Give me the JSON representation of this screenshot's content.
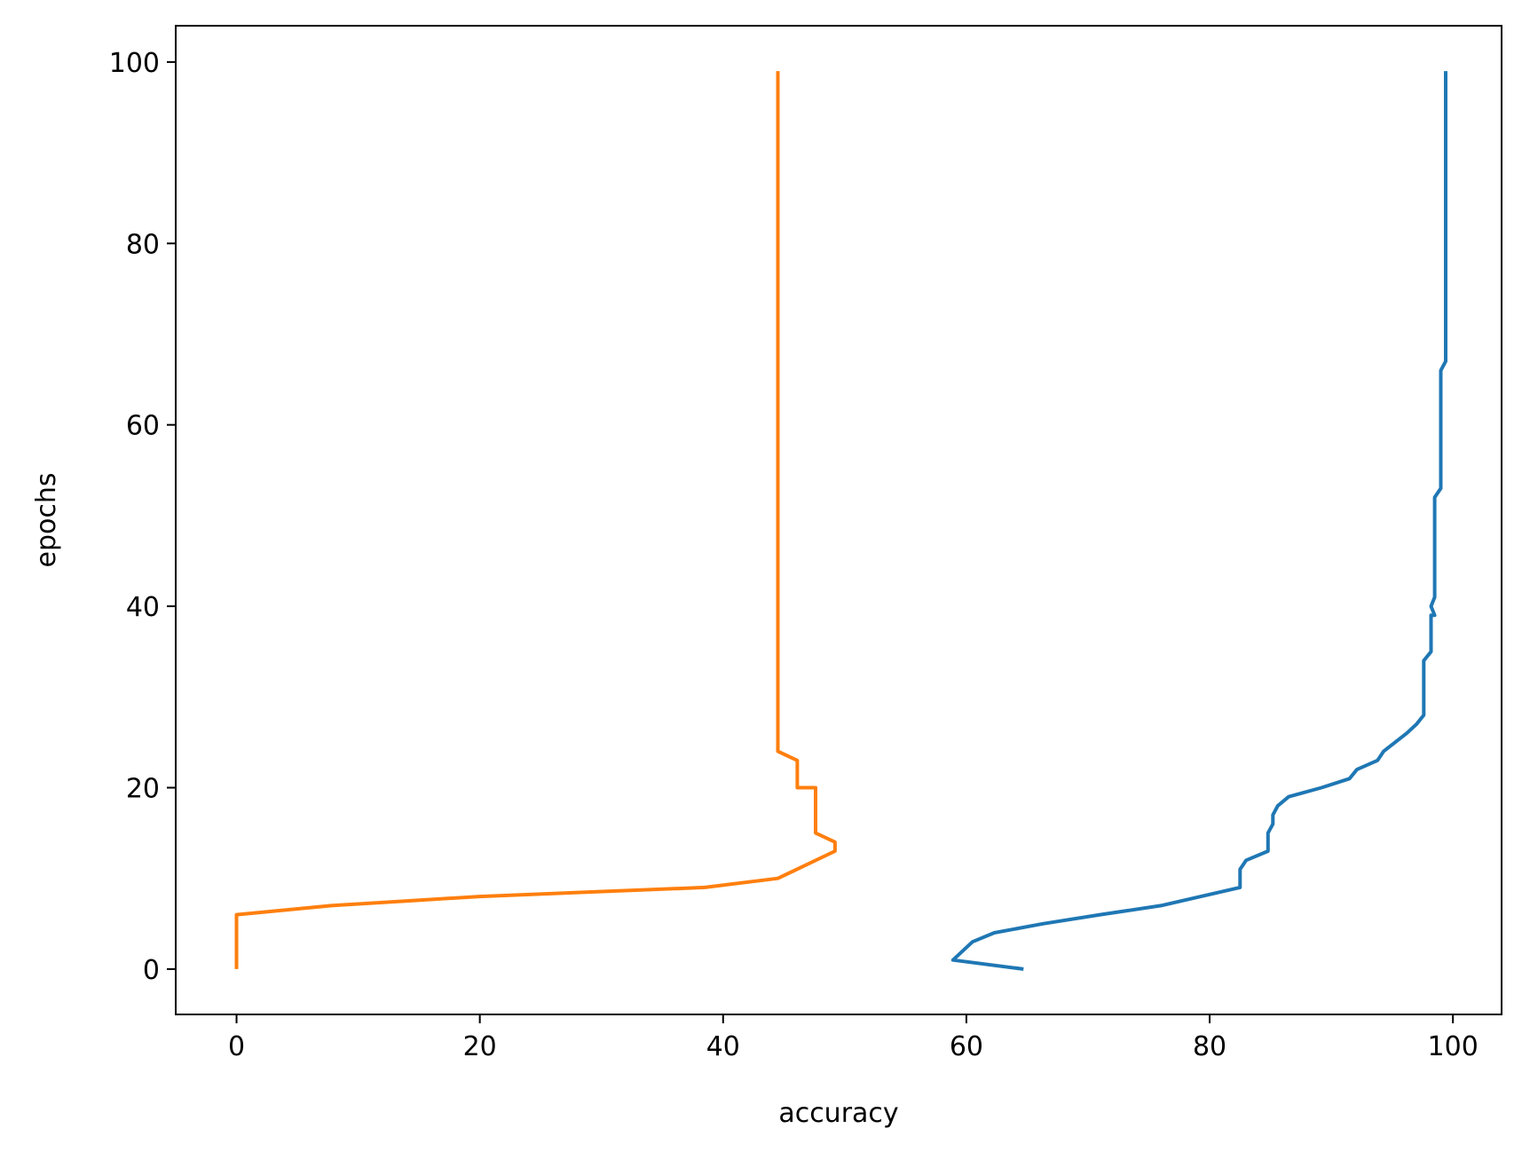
{
  "chart_data": {
    "type": "line",
    "xlabel": "accuracy",
    "ylabel": "epochs",
    "xlim": [
      -5,
      104
    ],
    "ylim": [
      -5,
      104
    ],
    "x_ticks": [
      0,
      20,
      40,
      60,
      80,
      100
    ],
    "y_ticks": [
      0,
      20,
      40,
      60,
      80,
      100
    ],
    "x_tick_labels": [
      "0",
      "20",
      "40",
      "60",
      "80",
      "100"
    ],
    "y_tick_labels": [
      "0",
      "20",
      "40",
      "60",
      "80",
      "100"
    ],
    "grid": false,
    "series": [
      {
        "color": "#1f77b4",
        "x": [
          64.7,
          58.9,
          60.5,
          62.3,
          66.3,
          71.0,
          76.0,
          82.5,
          82.5,
          82.5,
          83.0,
          84.8,
          84.8,
          84.8,
          85.2,
          85.2,
          85.6,
          86.5,
          89.2,
          91.5,
          92.1,
          93.8,
          94.3,
          96.2,
          97.0,
          97.6,
          97.6,
          97.6,
          97.6,
          97.6,
          97.6,
          97.6,
          97.6,
          97.6,
          98.2,
          98.2,
          98.2,
          98.2,
          98.2,
          98.5,
          98.2,
          98.5,
          98.5,
          98.5,
          98.5,
          98.5,
          98.5,
          98.5,
          98.5,
          98.5,
          98.5,
          98.5,
          98.5,
          99.0,
          99.0,
          99.0,
          99.0,
          99.0,
          99.0,
          99.0,
          99.0,
          99.0,
          99.0,
          99.0,
          99.0,
          99.0,
          99.0,
          99.4,
          99.4,
          99.4,
          99.4,
          99.4,
          99.4,
          99.4,
          99.4,
          99.4,
          99.4,
          99.4,
          99.4,
          99.4,
          99.4,
          99.4,
          99.4,
          99.4,
          99.4,
          99.4,
          99.4,
          99.4,
          99.4,
          99.4,
          99.4,
          99.4,
          99.4,
          99.4,
          99.4,
          99.4,
          99.4,
          99.4,
          99.4,
          99.4
        ],
        "y": [
          0,
          1,
          3,
          4,
          5,
          6,
          7,
          9,
          10,
          11,
          12,
          13,
          14,
          15,
          16,
          17,
          18,
          19,
          20,
          21,
          22,
          23,
          24,
          26,
          27,
          28,
          29,
          30,
          31,
          32,
          33,
          34,
          34,
          34,
          35,
          36,
          37,
          38,
          39,
          39,
          40,
          41,
          42,
          43,
          44,
          45,
          46,
          47,
          48,
          49,
          50,
          51,
          52,
          53,
          54,
          55,
          56,
          57,
          58,
          59,
          60,
          61,
          62,
          63,
          64,
          65,
          66,
          67,
          68,
          69,
          70,
          71,
          72,
          73,
          74,
          75,
          76,
          77,
          78,
          79,
          80,
          81,
          82,
          83,
          84,
          85,
          86,
          87,
          88,
          89,
          90,
          91,
          92,
          93,
          94,
          95,
          96,
          97,
          98,
          99
        ]
      },
      {
        "color": "#ff7f0e",
        "x": [
          0,
          0,
          0,
          0,
          0,
          0,
          0,
          7.8,
          20.0,
          38.5,
          44.5,
          49.2,
          49.2,
          49.2,
          47.6,
          47.6,
          47.6,
          47.6,
          47.6,
          47.6,
          46.1,
          46.1,
          46.1,
          44.5,
          44.5,
          44.5,
          44.5,
          44.5,
          44.5,
          44.5,
          44.5,
          44.5,
          44.5,
          44.5,
          44.5,
          44.5,
          44.5,
          44.5,
          44.5,
          44.5,
          44.5,
          44.5,
          44.5,
          44.5,
          44.5,
          44.5,
          44.5,
          44.5,
          44.5,
          44.5,
          44.5,
          44.5,
          44.5,
          44.5,
          44.5,
          44.5,
          44.5,
          44.5,
          44.5,
          44.5,
          44.5,
          44.5,
          44.5,
          44.5,
          44.5,
          44.5,
          44.5,
          44.5,
          44.5,
          44.5,
          44.5,
          44.5,
          44.5,
          44.5,
          44.5,
          44.5,
          44.5,
          44.5,
          44.5,
          44.5,
          44.5,
          44.5,
          44.5,
          44.5,
          44.5,
          44.5,
          44.5,
          44.5,
          44.5,
          44.5,
          44.5,
          44.5,
          44.5,
          44.5,
          44.5,
          44.5,
          44.5,
          44.5,
          44.5,
          44.5
        ],
        "y": [
          0,
          1,
          2,
          3,
          4,
          5,
          6,
          7,
          8,
          9,
          10,
          13,
          14,
          14,
          15,
          16,
          17,
          18,
          19,
          20,
          20,
          21,
          23,
          24,
          25,
          26,
          27,
          28,
          29,
          30,
          31,
          32,
          33,
          34,
          35,
          36,
          37,
          38,
          39,
          40,
          41,
          42,
          43,
          44,
          45,
          46,
          47,
          48,
          49,
          50,
          51,
          52,
          53,
          54,
          55,
          56,
          57,
          58,
          59,
          60,
          61,
          62,
          63,
          64,
          65,
          66,
          67,
          68,
          69,
          70,
          71,
          72,
          73,
          74,
          75,
          76,
          77,
          78,
          79,
          80,
          81,
          82,
          83,
          84,
          85,
          86,
          87,
          88,
          89,
          90,
          91,
          92,
          93,
          94,
          95,
          96,
          97,
          98,
          99,
          99
        ]
      }
    ]
  }
}
